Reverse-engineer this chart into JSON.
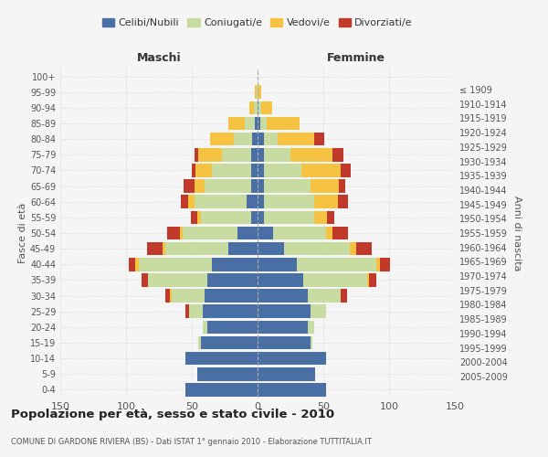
{
  "age_groups": [
    "0-4",
    "5-9",
    "10-14",
    "15-19",
    "20-24",
    "25-29",
    "30-34",
    "35-39",
    "40-44",
    "45-49",
    "50-54",
    "55-59",
    "60-64",
    "65-69",
    "70-74",
    "75-79",
    "80-84",
    "85-89",
    "90-94",
    "95-99",
    "100+"
  ],
  "birth_years": [
    "2005-2009",
    "2000-2004",
    "1995-1999",
    "1990-1994",
    "1985-1989",
    "1980-1984",
    "1975-1979",
    "1970-1974",
    "1965-1969",
    "1960-1964",
    "1955-1959",
    "1950-1954",
    "1945-1949",
    "1940-1944",
    "1935-1939",
    "1930-1934",
    "1925-1929",
    "1920-1924",
    "1915-1919",
    "1910-1914",
    "≤ 1909"
  ],
  "male": {
    "celibi": [
      55,
      46,
      55,
      43,
      38,
      42,
      40,
      38,
      35,
      22,
      15,
      5,
      8,
      5,
      5,
      5,
      4,
      2,
      0,
      0,
      0
    ],
    "coniugati": [
      0,
      0,
      0,
      2,
      4,
      10,
      25,
      45,
      55,
      48,
      42,
      38,
      40,
      35,
      30,
      22,
      14,
      8,
      3,
      1,
      0
    ],
    "vedovi": [
      0,
      0,
      0,
      0,
      0,
      0,
      2,
      0,
      3,
      2,
      2,
      3,
      5,
      8,
      12,
      18,
      18,
      12,
      3,
      1,
      0
    ],
    "divorziati": [
      0,
      0,
      0,
      0,
      0,
      3,
      3,
      5,
      5,
      12,
      10,
      5,
      5,
      8,
      3,
      3,
      0,
      0,
      0,
      0,
      0
    ]
  },
  "female": {
    "nubili": [
      52,
      44,
      52,
      40,
      38,
      40,
      38,
      35,
      30,
      20,
      12,
      5,
      5,
      5,
      5,
      5,
      5,
      2,
      1,
      0,
      0
    ],
    "coniugate": [
      0,
      0,
      0,
      2,
      5,
      12,
      25,
      48,
      60,
      50,
      40,
      38,
      38,
      35,
      28,
      20,
      10,
      5,
      2,
      1,
      0
    ],
    "vedove": [
      0,
      0,
      0,
      0,
      0,
      0,
      0,
      2,
      3,
      5,
      5,
      10,
      18,
      22,
      30,
      32,
      28,
      25,
      8,
      2,
      0
    ],
    "divorziate": [
      0,
      0,
      0,
      0,
      0,
      0,
      5,
      5,
      8,
      12,
      12,
      5,
      8,
      5,
      8,
      8,
      8,
      0,
      0,
      0,
      0
    ]
  },
  "colors": {
    "celibi": "#4a6fa5",
    "coniugati": "#c8dba0",
    "vedovi": "#f5c242",
    "divorziati": "#c0392b"
  },
  "title": "Popolazione per età, sesso e stato civile - 2010",
  "subtitle": "COMUNE DI GARDONE RIVIERA (BS) - Dati ISTAT 1° gennaio 2010 - Elaborazione TUTTITALIA.IT",
  "xlabel_left": "Maschi",
  "xlabel_right": "Femmine",
  "ylabel_left": "Fasce di età",
  "ylabel_right": "Anni di nascita",
  "xlim": 150,
  "background_color": "#f5f5f5"
}
